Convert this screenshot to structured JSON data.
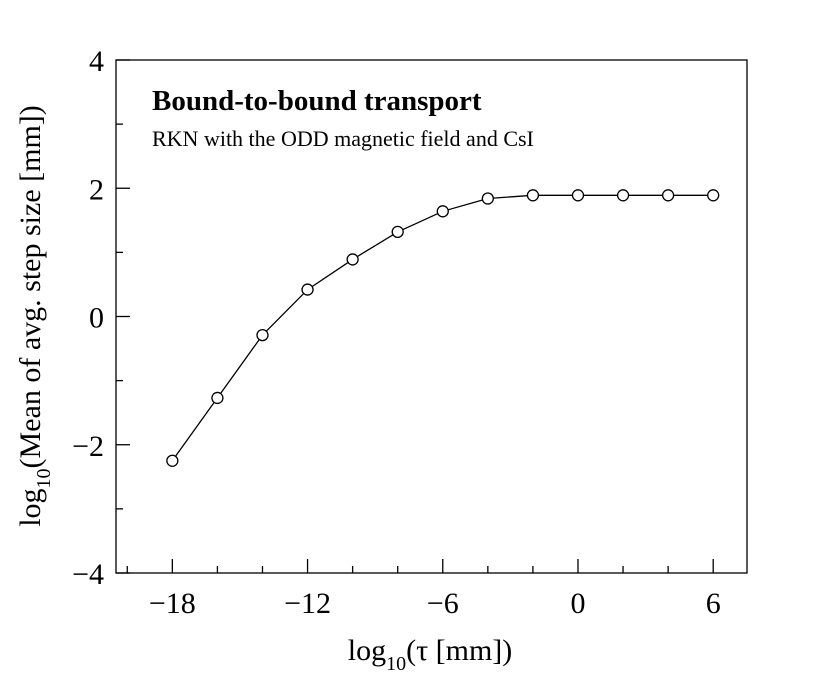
{
  "chart_data": {
    "type": "line",
    "title": "Bound-to-bound transport",
    "subtitle": "RKN with the ODD magnetic field and CsI",
    "xlabel": {
      "prefix": "log",
      "sub": "10",
      "body": "(τ [mm])"
    },
    "ylabel": {
      "prefix": "log",
      "sub": "10",
      "body": "(Mean of avg. step size [mm])"
    },
    "xlim": [
      -20.5,
      7.5
    ],
    "ylim": [
      -4,
      4
    ],
    "x_ticks": [
      -18,
      -12,
      -6,
      0,
      6
    ],
    "x_tick_labels": [
      "−18",
      "−12",
      "−6",
      "0",
      "6"
    ],
    "y_ticks": [
      -4,
      -2,
      0,
      2,
      4
    ],
    "y_tick_labels": [
      "−4",
      "−2",
      "0",
      "2",
      "4"
    ],
    "grid": false,
    "marker": "open-circle",
    "series": [
      {
        "x": [
          -18,
          -16,
          -14,
          -12,
          -10,
          -8,
          -6,
          -4,
          -2,
          0,
          2,
          4,
          6
        ],
        "y": [
          -2.25,
          -1.27,
          -0.29,
          0.42,
          0.89,
          1.32,
          1.64,
          1.84,
          1.89,
          1.89,
          1.89,
          1.89,
          1.89
        ]
      }
    ]
  }
}
